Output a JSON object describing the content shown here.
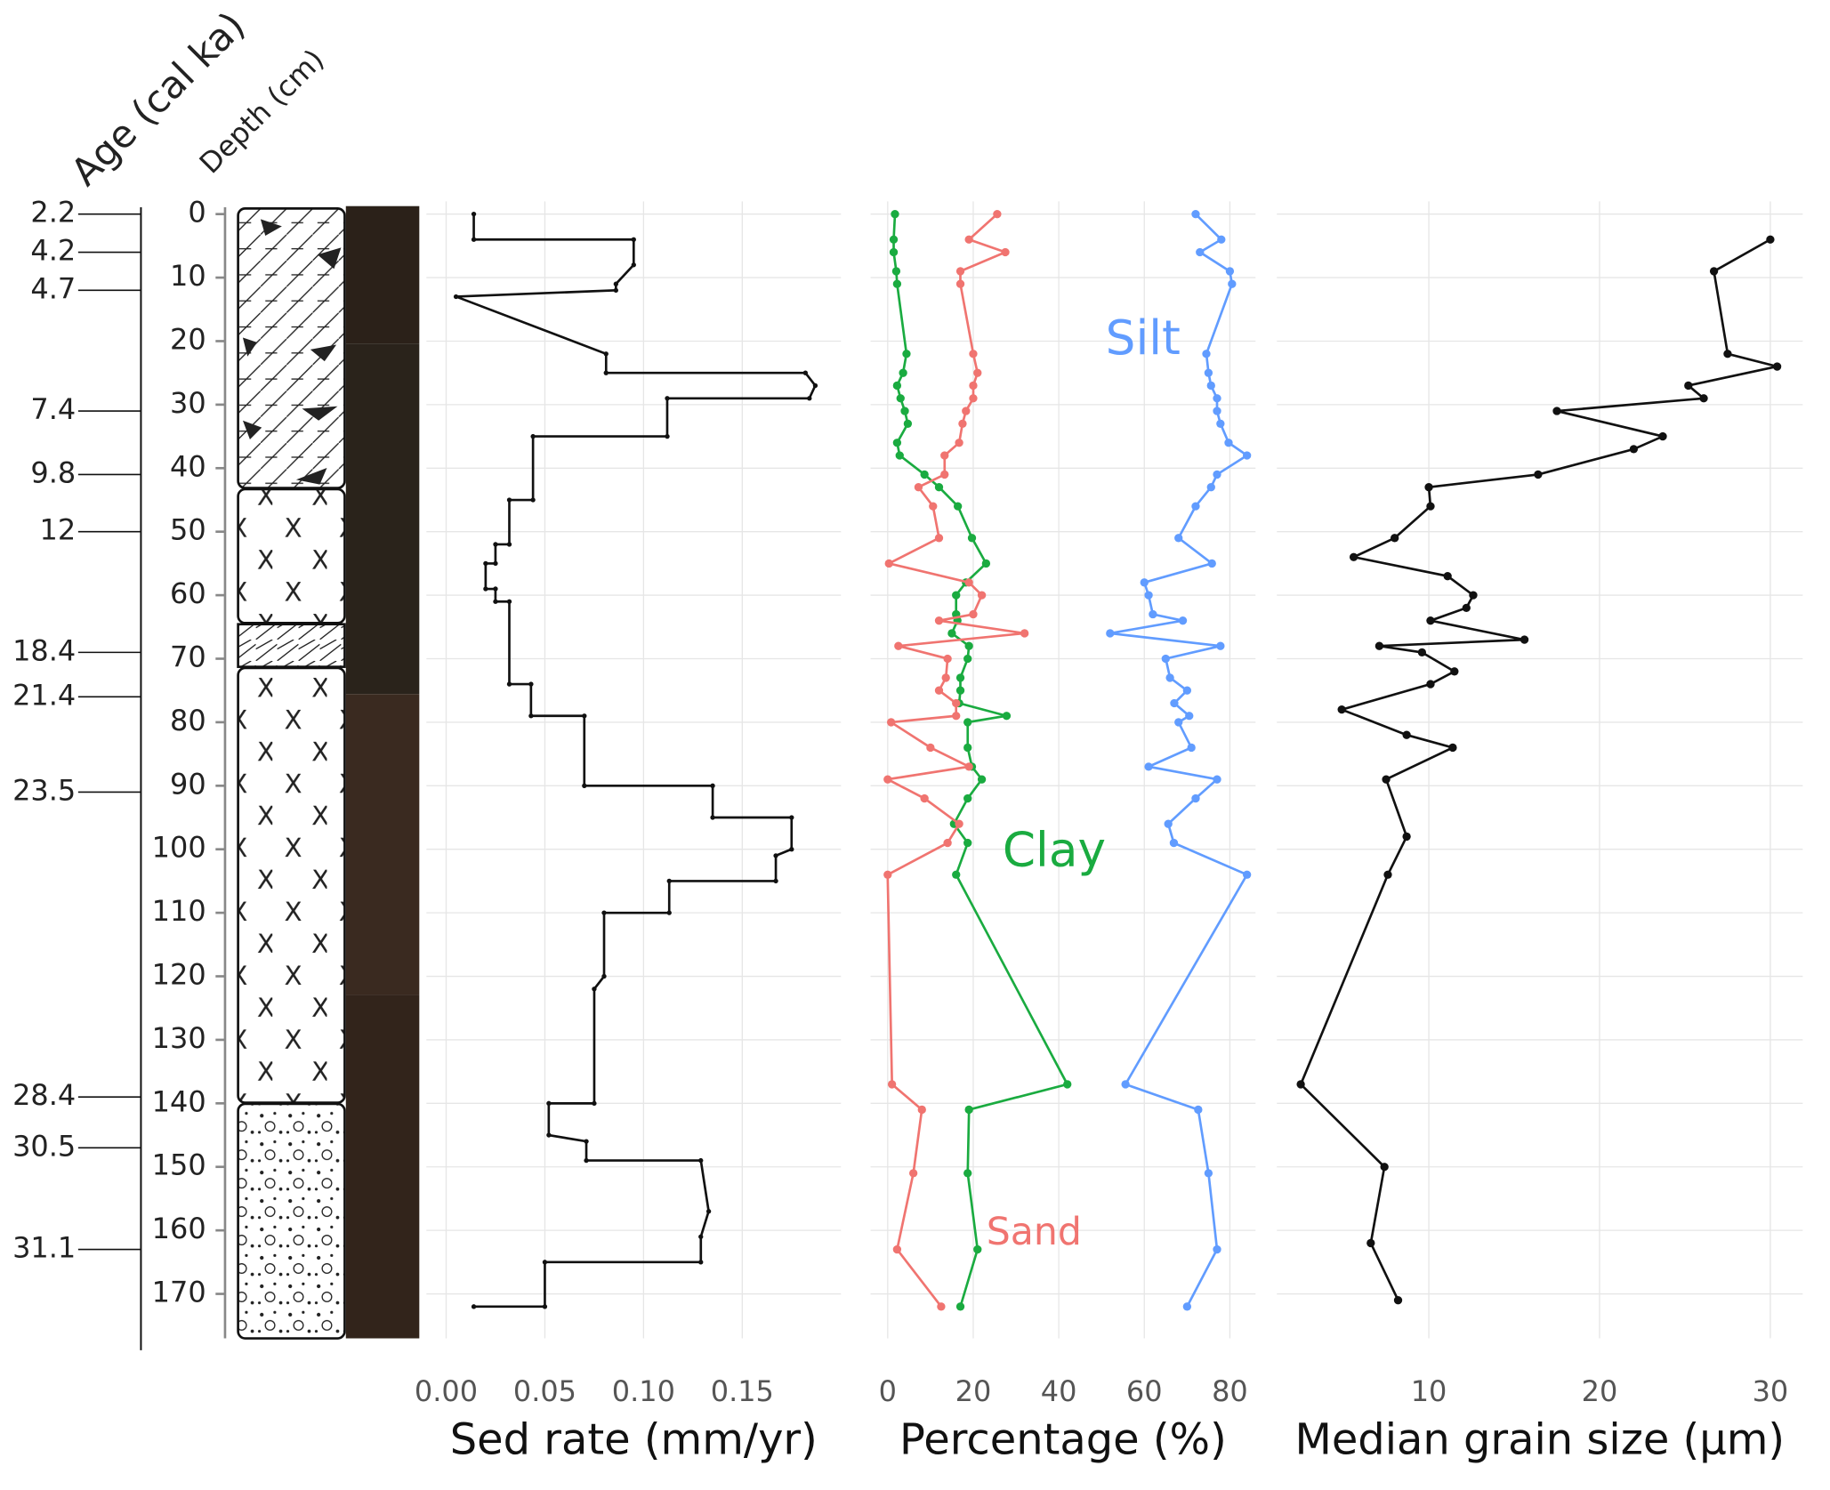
{
  "chart_data": [
    {
      "type": "column",
      "age_label": "Age (cal ka)",
      "depth_label": "Depth (cm)",
      "ages": [
        "2.2",
        "4.2",
        "4.7",
        "7.4",
        "9.8",
        "12",
        "18.4",
        "21.4",
        "23.5",
        "28.4",
        "30.5",
        "31.1"
      ],
      "age_depths": [
        0,
        6,
        12,
        31,
        41,
        50,
        69,
        76,
        91,
        139,
        147,
        163
      ],
      "ylim": [
        -2,
        177
      ],
      "yticks": [
        0,
        10,
        20,
        30,
        40,
        50,
        60,
        70,
        80,
        90,
        100,
        110,
        120,
        130,
        140,
        150,
        160,
        170
      ]
    },
    {
      "type": "line",
      "xlabel": "Sed rate (mm/yr)",
      "xlim": [
        -0.01,
        0.2
      ],
      "xticks": [
        {
          "value": 0,
          "label": "0.00"
        },
        0.05,
        {
          "value": 0.1,
          "label": "0.10"
        },
        0.15
      ],
      "grid": true,
      "y": [
        0,
        4,
        4,
        8,
        11,
        12,
        13,
        22,
        25,
        25,
        27,
        29,
        29,
        35,
        35,
        45,
        45,
        52,
        52,
        55,
        55,
        59,
        59,
        61,
        61,
        74,
        74,
        79,
        79,
        90,
        90,
        95,
        95,
        100,
        101,
        105,
        105,
        110,
        110,
        120,
        122,
        140,
        140,
        145,
        146,
        149,
        149,
        157,
        161,
        165,
        165,
        172,
        172
      ],
      "series": [
        {
          "color": "#111111",
          "values": [
            0.014,
            0.014,
            0.095,
            0.095,
            0.086,
            0.086,
            0.005,
            0.081,
            0.081,
            0.182,
            0.187,
            0.184,
            0.112,
            0.112,
            0.044,
            0.044,
            0.032,
            0.032,
            0.025,
            0.025,
            0.02,
            0.02,
            0.025,
            0.025,
            0.032,
            0.032,
            0.043,
            0.043,
            0.07,
            0.07,
            0.135,
            0.135,
            0.175,
            0.175,
            0.167,
            0.167,
            0.113,
            0.113,
            0.08,
            0.08,
            0.075,
            0.075,
            0.052,
            0.052,
            0.071,
            0.071,
            0.129,
            0.133,
            0.129,
            0.129,
            0.05,
            0.05,
            0.014
          ]
        }
      ]
    },
    {
      "type": "line",
      "xlabel": "Percentage (%)",
      "xlim": [
        -4,
        86
      ],
      "xticks": [
        0,
        20,
        40,
        60,
        80
      ],
      "grid": true,
      "y": [
        0,
        4,
        6,
        9,
        11,
        22,
        25,
        27,
        29,
        31,
        33,
        36,
        38,
        41,
        43,
        46,
        51,
        55,
        58,
        60,
        63,
        64,
        66,
        68,
        70,
        73,
        75,
        77,
        79,
        80,
        84,
        87,
        89,
        92,
        96,
        99,
        104,
        137,
        141,
        151,
        163,
        172
      ],
      "series": [
        {
          "name": "Silt",
          "color": "#619cff",
          "values": [
            72,
            78,
            73,
            80,
            80.5,
            74.5,
            75,
            75.6,
            77,
            77,
            77.8,
            79.7,
            84,
            77,
            75.6,
            72,
            68,
            75.8,
            60,
            61,
            62,
            69,
            52,
            77.8,
            65,
            66,
            70,
            67,
            70.5,
            68,
            71,
            61,
            77,
            72,
            65.6,
            66.9,
            84,
            55.6,
            72.6,
            75,
            77,
            70
          ]
        },
        {
          "name": "Clay",
          "color": "#1aab40",
          "values": [
            1.7,
            1.4,
            1.4,
            2,
            2.2,
            4.4,
            3.6,
            2.2,
            3,
            4,
            4.7,
            2.2,
            2.8,
            8.6,
            12,
            16.4,
            19.7,
            23,
            18.3,
            16,
            16,
            16.3,
            15,
            19,
            18.7,
            17,
            17,
            16.7,
            27.8,
            18.7,
            18.7,
            19.7,
            22,
            18.7,
            15.5,
            18.7,
            16,
            42,
            19,
            18.7,
            21,
            17
          ]
        },
        {
          "name": "Sand",
          "color": "#f07470",
          "values": [
            25.6,
            19,
            27.5,
            17,
            17,
            20,
            21,
            20,
            20,
            18.3,
            17.5,
            16.7,
            13.3,
            13.3,
            7.2,
            10.6,
            12,
            0.3,
            19,
            22,
            20,
            12,
            32,
            2.5,
            14,
            13.6,
            12,
            16,
            16,
            0.8,
            10,
            19,
            0,
            8.6,
            16.7,
            14,
            0,
            1,
            8,
            6,
            2.2,
            12.5
          ]
        }
      ]
    },
    {
      "type": "line",
      "xlabel": "Median grain size (µm)",
      "xlim": [
        1.1,
        31.9
      ],
      "xticks": [
        10,
        20,
        30
      ],
      "grid": true,
      "y": [
        4,
        9,
        22,
        24,
        27,
        29,
        31,
        35,
        37,
        41,
        43,
        46,
        51,
        54,
        57,
        60,
        62,
        64,
        67,
        68,
        69,
        72,
        74,
        78,
        82,
        84,
        89,
        98,
        104,
        137,
        150,
        162,
        171
      ],
      "series": [
        {
          "color": "#111111",
          "values": [
            30,
            26.7,
            27.5,
            30.4,
            25.2,
            26.1,
            17.5,
            23.7,
            22,
            16.4,
            10,
            10.1,
            8,
            5.6,
            11.1,
            12.6,
            12.2,
            10.1,
            15.6,
            7.1,
            9.6,
            11.5,
            10.1,
            4.9,
            8.7,
            11.4,
            7.5,
            8.7,
            7.6,
            2.5,
            7.4,
            6.6,
            8.2
          ]
        }
      ]
    }
  ]
}
